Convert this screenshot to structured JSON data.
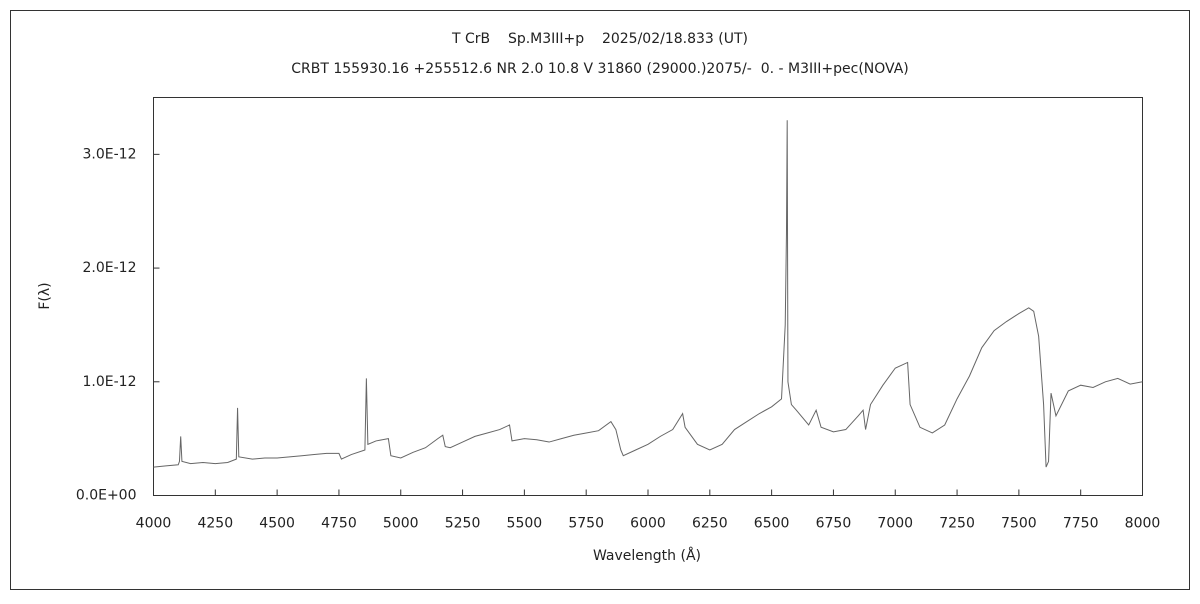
{
  "chart_data": {
    "type": "line",
    "title": "T CrB    Sp.M3III+p    2025/02/18.833 (UT)",
    "subtitle": "CRBT 155930.16 +255512.6 NR 2.0 10.8 V 31860 (29000.)2075/-  0. - M3III+pec(NOVA)",
    "x_label": "Wavelength (Å)",
    "y_label": "F(λ)",
    "color": "#666666",
    "xlim": [
      4000,
      8000
    ],
    "ylim": [
      0,
      3.5e-12
    ],
    "xticks": [
      4000,
      4250,
      4500,
      4750,
      5000,
      5250,
      5500,
      5750,
      6000,
      6250,
      6500,
      6750,
      7000,
      7250,
      7500,
      7750,
      8000
    ],
    "yticks": [
      {
        "value": 0,
        "label": "0.0E+00"
      },
      {
        "value": 1e-12,
        "label": "1.0E-12"
      },
      {
        "value": 2e-12,
        "label": "2.0E-12"
      },
      {
        "value": 3e-12,
        "label": "3.0E-12"
      }
    ],
    "x": [
      4000,
      4050,
      4100,
      4105,
      4110,
      4115,
      4150,
      4200,
      4250,
      4300,
      4335,
      4340,
      4345,
      4400,
      4450,
      4500,
      4550,
      4600,
      4650,
      4700,
      4750,
      4760,
      4800,
      4855,
      4861,
      4867,
      4900,
      4950,
      4960,
      5000,
      5050,
      5100,
      5150,
      5170,
      5180,
      5200,
      5250,
      5300,
      5350,
      5400,
      5440,
      5450,
      5500,
      5550,
      5600,
      5650,
      5700,
      5750,
      5800,
      5850,
      5870,
      5890,
      5900,
      5950,
      6000,
      6050,
      6100,
      6140,
      6150,
      6200,
      6250,
      6300,
      6350,
      6400,
      6450,
      6500,
      6540,
      6555,
      6560,
      6563,
      6566,
      6580,
      6600,
      6650,
      6680,
      6700,
      6750,
      6800,
      6850,
      6870,
      6880,
      6900,
      6950,
      7000,
      7050,
      7060,
      7100,
      7150,
      7200,
      7250,
      7300,
      7350,
      7400,
      7450,
      7500,
      7540,
      7560,
      7580,
      7600,
      7610,
      7620,
      7630,
      7650,
      7700,
      7750,
      7800,
      7850,
      7900,
      7950,
      8000
    ],
    "values": [
      2.5e-13,
      2.6e-13,
      2.7e-13,
      3e-13,
      5.2e-13,
      3e-13,
      2.8e-13,
      2.9e-13,
      2.8e-13,
      2.9e-13,
      3.2e-13,
      7.7e-13,
      3.4e-13,
      3.2e-13,
      3.3e-13,
      3.3e-13,
      3.4e-13,
      3.5e-13,
      3.6e-13,
      3.7e-13,
      3.7e-13,
      3.2e-13,
      3.6e-13,
      4e-13,
      1.03e-12,
      4.5e-13,
      4.8e-13,
      5e-13,
      3.5e-13,
      3.3e-13,
      3.8e-13,
      4.2e-13,
      5e-13,
      5.3e-13,
      4.3e-13,
      4.2e-13,
      4.7e-13,
      5.2e-13,
      5.5e-13,
      5.8e-13,
      6.2e-13,
      4.8e-13,
      5e-13,
      4.9e-13,
      4.7e-13,
      5e-13,
      5.3e-13,
      5.5e-13,
      5.7e-13,
      6.5e-13,
      5.8e-13,
      4e-13,
      3.5e-13,
      4e-13,
      4.5e-13,
      5.2e-13,
      5.8e-13,
      7.2e-13,
      6e-13,
      4.5e-13,
      4e-13,
      4.5e-13,
      5.8e-13,
      6.5e-13,
      7.2e-13,
      7.8e-13,
      8.5e-13,
      1.5e-12,
      2.3e-12,
      3.3e-12,
      1e-12,
      8e-13,
      7.5e-13,
      6.2e-13,
      7.5e-13,
      6e-13,
      5.6e-13,
      5.8e-13,
      7e-13,
      7.5e-13,
      5.8e-13,
      8e-13,
      9.7e-13,
      1.12e-12,
      1.17e-12,
      8e-13,
      6e-13,
      5.5e-13,
      6.2e-13,
      8.5e-13,
      1.05e-12,
      1.3e-12,
      1.45e-12,
      1.53e-12,
      1.6e-12,
      1.65e-12,
      1.62e-12,
      1.4e-12,
      8e-13,
      2.5e-13,
      3e-13,
      9e-13,
      7e-13,
      9.2e-13,
      9.7e-13,
      9.5e-13,
      1e-12,
      1.03e-12,
      9.8e-13,
      1e-12
    ]
  }
}
